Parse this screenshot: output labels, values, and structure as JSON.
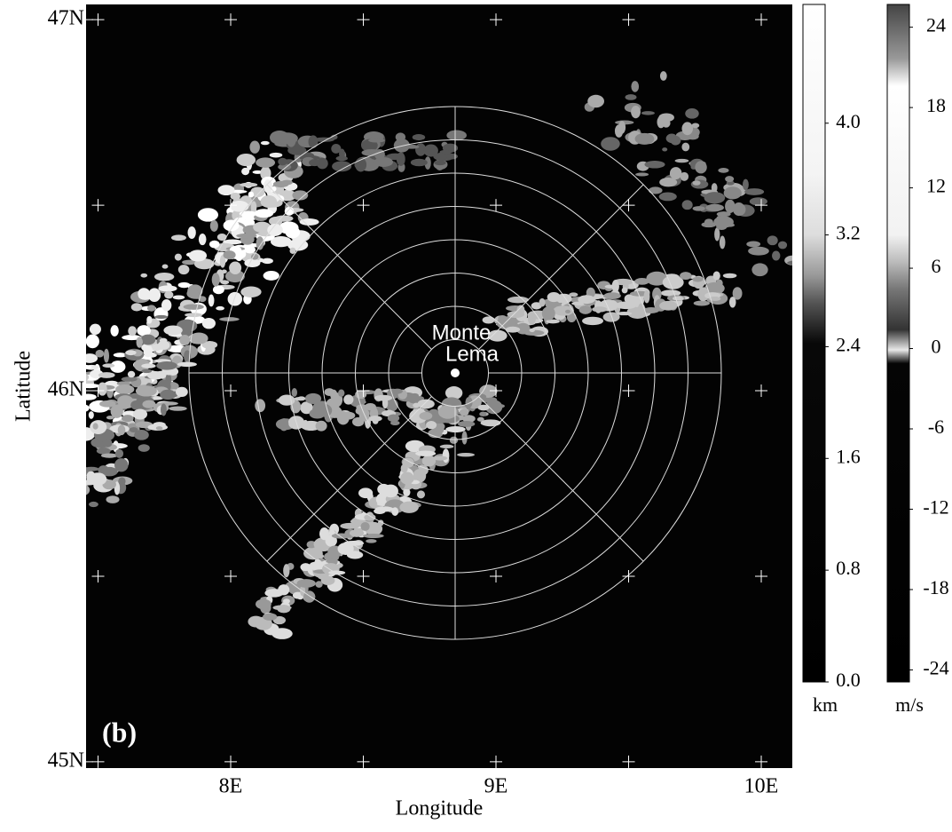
{
  "map": {
    "panel_label": "(b)",
    "site_label": [
      "Monte",
      "Lema"
    ],
    "xaxis": {
      "title": "Longitude",
      "lim": [
        7.4548,
        10.117
      ],
      "ticks": [
        {
          "value": 8,
          "label": "8E"
        },
        {
          "value": 9,
          "label": "9E"
        },
        {
          "value": 10,
          "label": "10E"
        }
      ]
    },
    "yaxis": {
      "title": "Latitude",
      "lim": [
        44.983,
        47.041
      ],
      "ticks": [
        {
          "value": 45,
          "label": "45N"
        },
        {
          "value": 46,
          "label": "46N"
        },
        {
          "value": 47,
          "label": "47N"
        }
      ]
    }
  },
  "colorbars": [
    {
      "unit": "km",
      "lim": [
        0,
        4.85
      ],
      "ticks": [
        {
          "value": 0,
          "label": "0.0"
        },
        {
          "value": 0.8,
          "label": "0.8"
        },
        {
          "value": 1.6,
          "label": "1.6"
        },
        {
          "value": 2.4,
          "label": "2.4"
        },
        {
          "value": 3.2,
          "label": "3.2"
        },
        {
          "value": 4,
          "label": "4.0"
        }
      ]
    },
    {
      "unit": "m/s",
      "lim": [
        -24.9,
        25.7
      ],
      "ticks": [
        -24,
        -18,
        -12,
        -6,
        0,
        6,
        12,
        18,
        24
      ]
    }
  ]
}
